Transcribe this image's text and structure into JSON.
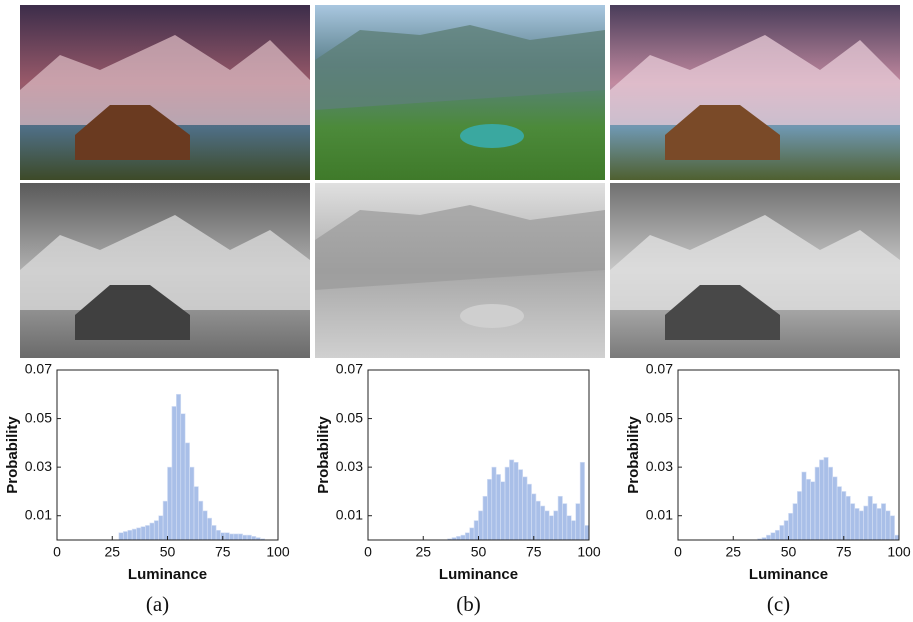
{
  "chart_data": [
    {
      "type": "histogram",
      "caption": "(a)",
      "xlabel": "Luminance",
      "ylabel": "Probability",
      "color": "#a9bfe8",
      "bins": [
        0,
        2,
        4,
        6,
        8,
        10,
        12,
        14,
        16,
        18,
        20,
        22,
        24,
        26,
        28,
        30,
        32,
        34,
        36,
        38,
        40,
        42,
        44,
        46,
        48,
        50,
        52,
        54,
        56,
        58,
        60,
        62,
        64,
        66,
        68,
        70,
        72,
        74,
        76,
        78,
        80,
        82,
        84,
        86,
        88,
        90,
        92,
        94,
        96,
        98,
        100
      ],
      "counts": [
        0,
        0,
        0,
        0,
        0,
        0,
        0,
        0,
        0,
        0,
        0,
        0,
        0,
        0,
        0.003,
        0.0035,
        0.004,
        0.0045,
        0.005,
        0.0055,
        0.006,
        0.007,
        0.008,
        0.01,
        0.016,
        0.03,
        0.055,
        0.06,
        0.052,
        0.04,
        0.03,
        0.022,
        0.016,
        0.012,
        0.009,
        0.006,
        0.004,
        0.003,
        0.003,
        0.0025,
        0.0025,
        0.0025,
        0.002,
        0.002,
        0.0015,
        0.001,
        0.0005,
        0,
        0,
        0
      ],
      "xlim": [
        0,
        100
      ],
      "ylim": [
        0,
        0.07
      ],
      "xticks": [
        0,
        25,
        50,
        75,
        100
      ],
      "yticks": [
        0.01,
        0.03,
        0.05,
        0.07
      ]
    },
    {
      "type": "histogram",
      "caption": "(b)",
      "xlabel": "Luminance",
      "ylabel": "Probability",
      "color": "#a9bfe8",
      "bins": [
        0,
        2,
        4,
        6,
        8,
        10,
        12,
        14,
        16,
        18,
        20,
        22,
        24,
        26,
        28,
        30,
        32,
        34,
        36,
        38,
        40,
        42,
        44,
        46,
        48,
        50,
        52,
        54,
        56,
        58,
        60,
        62,
        64,
        66,
        68,
        70,
        72,
        74,
        76,
        78,
        80,
        82,
        84,
        86,
        88,
        90,
        92,
        94,
        96,
        98,
        100
      ],
      "counts": [
        0,
        0,
        0,
        0,
        0,
        0,
        0,
        0,
        0,
        0,
        0,
        0,
        0,
        0,
        0,
        0,
        0,
        0,
        0.0005,
        0.001,
        0.0015,
        0.002,
        0.003,
        0.005,
        0.008,
        0.012,
        0.018,
        0.025,
        0.03,
        0.027,
        0.024,
        0.03,
        0.033,
        0.032,
        0.029,
        0.026,
        0.023,
        0.019,
        0.016,
        0.014,
        0.012,
        0.01,
        0.012,
        0.018,
        0.015,
        0.01,
        0.008,
        0.015,
        0.032,
        0.006
      ],
      "xlim": [
        0,
        100
      ],
      "ylim": [
        0,
        0.07
      ],
      "xticks": [
        0,
        25,
        50,
        75,
        100
      ],
      "yticks": [
        0.01,
        0.03,
        0.05,
        0.07
      ]
    },
    {
      "type": "histogram",
      "caption": "(c)",
      "xlabel": "Luminance",
      "ylabel": "Probability",
      "color": "#a9bfe8",
      "bins": [
        0,
        2,
        4,
        6,
        8,
        10,
        12,
        14,
        16,
        18,
        20,
        22,
        24,
        26,
        28,
        30,
        32,
        34,
        36,
        38,
        40,
        42,
        44,
        46,
        48,
        50,
        52,
        54,
        56,
        58,
        60,
        62,
        64,
        66,
        68,
        70,
        72,
        74,
        76,
        78,
        80,
        82,
        84,
        86,
        88,
        90,
        92,
        94,
        96,
        98,
        100
      ],
      "counts": [
        0,
        0,
        0,
        0,
        0,
        0,
        0,
        0,
        0,
        0,
        0,
        0,
        0,
        0,
        0,
        0,
        0,
        0,
        0.0005,
        0.001,
        0.002,
        0.003,
        0.004,
        0.006,
        0.008,
        0.011,
        0.015,
        0.02,
        0.028,
        0.025,
        0.024,
        0.03,
        0.033,
        0.034,
        0.03,
        0.026,
        0.022,
        0.02,
        0.018,
        0.015,
        0.013,
        0.012,
        0.014,
        0.018,
        0.015,
        0.013,
        0.015,
        0.012,
        0.01,
        0.002
      ],
      "xlim": [
        0,
        100
      ],
      "ylim": [
        0,
        0.07
      ],
      "xticks": [
        0,
        25,
        50,
        75,
        100
      ],
      "yticks": [
        0.01,
        0.03,
        0.05,
        0.07
      ]
    }
  ]
}
